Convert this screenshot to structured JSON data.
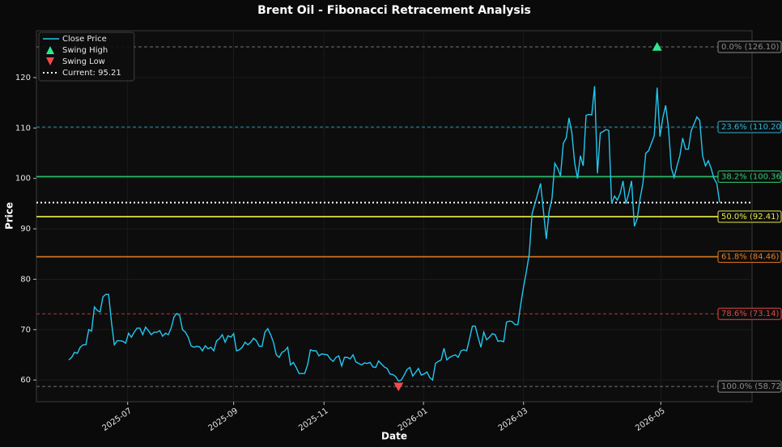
{
  "chart_data": {
    "type": "line",
    "title": "Brent Oil - Fibonacci Retracement Analysis",
    "xlabel": "Date",
    "ylabel": "Price",
    "legend": "upper left",
    "grid": true,
    "xlim": [
      -11.4,
      240.4
    ],
    "xticks": [
      {
        "value": 20.7,
        "label": "2025-07"
      },
      {
        "value": 58,
        "label": "2025-09"
      },
      {
        "value": 89.8,
        "label": "2025-11"
      },
      {
        "value": 124.8,
        "label": "2026-01"
      },
      {
        "value": 160,
        "label": "2026-03"
      },
      {
        "value": 208.3,
        "label": "2026-05"
      }
    ],
    "ylim": [
      55.7,
      129.3
    ],
    "yticks": [
      60,
      70,
      80,
      90,
      100,
      110,
      120
    ],
    "series": [
      {
        "name": "Close Price",
        "color": "#22c7f0",
        "values": [
          64,
          64.5,
          65.5,
          65.3,
          66.5,
          67,
          67,
          70,
          69.7,
          74.5,
          73.8,
          73.5,
          76.5,
          77,
          77,
          71.5,
          67,
          67.8,
          67.8,
          67.7,
          67.3,
          69.3,
          68.5,
          69.5,
          70.3,
          70.3,
          69,
          70.5,
          69.8,
          69,
          69.5,
          69.5,
          69.8,
          68.7,
          69.3,
          69,
          70.3,
          72.5,
          73.2,
          72.8,
          70,
          69.5,
          68.5,
          66.8,
          66.5,
          66.7,
          66.6,
          65.8,
          66.8,
          66.2,
          66.5,
          65.8,
          67.8,
          68.2,
          69,
          67.5,
          68.8,
          68.5,
          69.2,
          65.8,
          66,
          66.5,
          67.5,
          67,
          67.5,
          68.3,
          67.8,
          66.7,
          66.7,
          69.5,
          70.2,
          69,
          67.5,
          65,
          64.5,
          65.5,
          65.8,
          66.5,
          63,
          63.5,
          62.5,
          61.3,
          61.3,
          61.3,
          63,
          66,
          65.8,
          65.8,
          64.8,
          65.2,
          65.1,
          65,
          64.2,
          63.7,
          64.5,
          64.8,
          62.8,
          64.5,
          64.5,
          64.2,
          65,
          63.6,
          63.3,
          63,
          63.4,
          63.3,
          63.5,
          62.6,
          62.5,
          63.8,
          63.2,
          62.6,
          62.3,
          61.2,
          61.1,
          60.7,
          59.8,
          60,
          61,
          62.1,
          62.5,
          60.8,
          61.5,
          62.3,
          61,
          61.2,
          61.6,
          60.5,
          60,
          63.3,
          63.7,
          64,
          66.3,
          64,
          64.5,
          64.8,
          65,
          64.5,
          65.8,
          66,
          65.8,
          68.2,
          70.7,
          70.7,
          68.5,
          66.5,
          69.5,
          68,
          68.5,
          69.2,
          69,
          67.7,
          67.8,
          67.6,
          71.5,
          71.7,
          71.6,
          71,
          71,
          75,
          78.5,
          81.5,
          85,
          93,
          95,
          97,
          99,
          93.5,
          88,
          93.5,
          96,
          103,
          102,
          100.5,
          107,
          108,
          112,
          109,
          103,
          100,
          104.5,
          102.5,
          112.5,
          112.7,
          112.6,
          118.3,
          101,
          109,
          109.3,
          109.7,
          109.5,
          95,
          96.5,
          95.7,
          97,
          99.5,
          95,
          97,
          99.5,
          90.5,
          92,
          96,
          99,
          105,
          105.5,
          107,
          108.5,
          118,
          108.3,
          112,
          114.5,
          110,
          102,
          100.2,
          102.5,
          104.5,
          108,
          105.8,
          105.8,
          109.5,
          110.8,
          112.2,
          111.5,
          104.5,
          102.5,
          103.5,
          102,
          100,
          99,
          95.2
        ]
      },
      {
        "name": "Swing High",
        "type": "scatter",
        "marker": "up",
        "color": "#2ee88f",
        "x": [
          207
        ],
        "values": [
          126.1
        ]
      },
      {
        "name": "Swing Low",
        "type": "scatter",
        "marker": "down",
        "color": "#f04a4a",
        "x": [
          116
        ],
        "values": [
          58.72
        ]
      }
    ],
    "current": {
      "name": "Current: 95.21",
      "value": 95.21,
      "color": "#ffffff"
    },
    "levels": [
      {
        "label": "0.0% (126.10)",
        "value": 126.1,
        "color": "#8c8c8c",
        "dashed": true
      },
      {
        "label": "23.6% (110.20)",
        "value": 110.2,
        "color": "#2fb4d8",
        "dashed": true
      },
      {
        "label": "38.2% (100.36)",
        "value": 100.36,
        "color": "#2ecc71",
        "dashed": false
      },
      {
        "label": "50.0% (92.41)",
        "value": 92.41,
        "color": "#e8e84a",
        "dashed": false
      },
      {
        "label": "61.8% (84.46)",
        "value": 84.46,
        "color": "#e67e22",
        "dashed": false
      },
      {
        "label": "78.6% (73.14)",
        "value": 73.14,
        "color": "#e04848",
        "dashed": true
      },
      {
        "label": "100.0% (58.72)",
        "value": 58.72,
        "color": "#8c8c8c",
        "dashed": true
      }
    ]
  }
}
